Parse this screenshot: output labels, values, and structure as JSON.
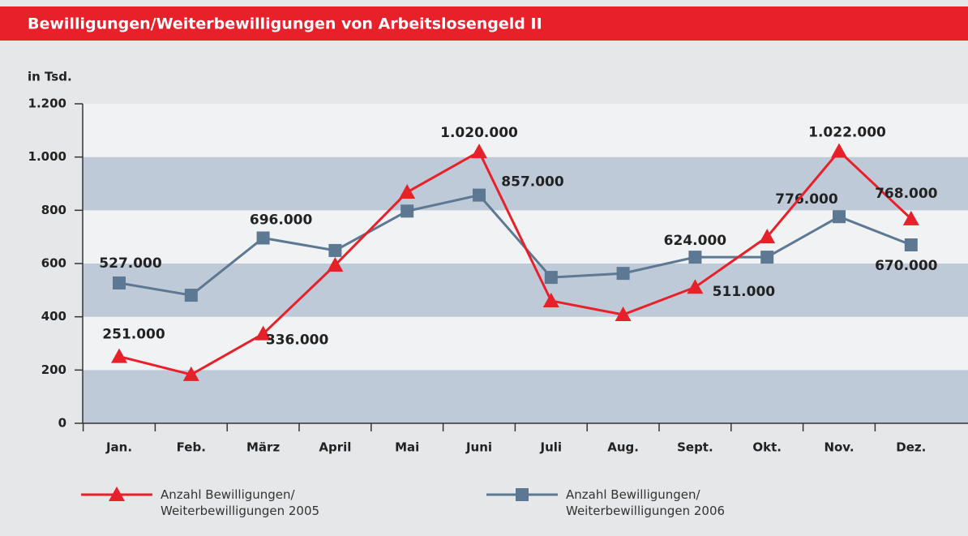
{
  "chart_data": {
    "type": "line",
    "title": "Bewilligungen/Weiterbewilligungen von Arbeitslosengeld II",
    "ylabel": "in Tsd.",
    "categories": [
      "Jan.",
      "Feb.",
      "März",
      "April",
      "Mai",
      "Juni",
      "Juli",
      "Aug.",
      "Sept.",
      "Okt.",
      "Nov.",
      "Dez."
    ],
    "series": [
      {
        "name": "Anzahl Bewilligungen/\nWeiterbewilligungen 2005",
        "color": "#e8202a",
        "marker": "triangle",
        "values": [
          251,
          183,
          336,
          594,
          868,
          1020,
          460,
          408,
          511,
          700,
          1022,
          768
        ],
        "value_labels": [
          "251.000",
          null,
          "336.000",
          null,
          null,
          "1.020.000",
          null,
          null,
          "511.000",
          null,
          "1.022.000",
          "768.000"
        ]
      },
      {
        "name": "Anzahl Bewilligungen/\nWeiterbewilligungen 2006",
        "color": "#5c7893",
        "marker": "square",
        "values": [
          527,
          481,
          696,
          649,
          797,
          857,
          548,
          563,
          624,
          624,
          776,
          670
        ],
        "value_labels": [
          "527.000",
          null,
          "696.000",
          null,
          null,
          "857.000",
          null,
          null,
          "624.000",
          null,
          "776.000",
          "670.000"
        ]
      }
    ],
    "ylim": [
      0,
      1200
    ],
    "yticks": [
      0,
      200,
      400,
      600,
      800,
      {
        "value": 1000,
        "label": "1.000"
      },
      {
        "value": 1200,
        "label": "1.200"
      }
    ]
  }
}
